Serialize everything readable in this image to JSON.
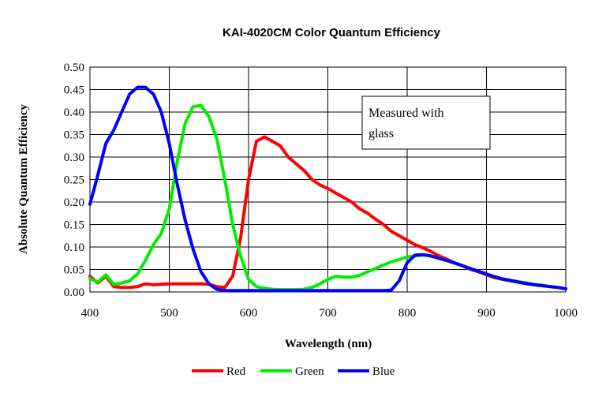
{
  "chart_data": {
    "type": "line",
    "title": "KAI-4020CM   Color Quantum Efficiency",
    "xlabel": "Wavelength (nm)",
    "ylabel": "Absolute Quantum Efficiency",
    "xlim": [
      400,
      1000
    ],
    "ylim": [
      0,
      0.5
    ],
    "xticks": [
      "400",
      "500",
      "600",
      "700",
      "800",
      "900",
      "1000"
    ],
    "yticks": [
      "0.00",
      "0.05",
      "0.10",
      "0.15",
      "0.20",
      "0.25",
      "0.30",
      "0.35",
      "0.40",
      "0.45",
      "0.50"
    ],
    "grid": true,
    "legend_position": "bottom",
    "annotation": {
      "line1": "Measured with",
      "line2": "glass"
    },
    "series": [
      {
        "name": "Red",
        "color": "#ff0000",
        "x": [
          400,
          410,
          420,
          430,
          440,
          450,
          460,
          470,
          480,
          490,
          500,
          510,
          520,
          530,
          540,
          550,
          560,
          570,
          580,
          590,
          600,
          610,
          615,
          620,
          625,
          630,
          640,
          650,
          660,
          670,
          680,
          690,
          700,
          710,
          720,
          730,
          740,
          750,
          760,
          770,
          780,
          790,
          800,
          810,
          820,
          830,
          840,
          850,
          860,
          870,
          880,
          890,
          900,
          910,
          920,
          930,
          940,
          950,
          960,
          970,
          980,
          990,
          1000
        ],
        "y": [
          0.035,
          0.02,
          0.035,
          0.012,
          0.01,
          0.01,
          0.012,
          0.018,
          0.016,
          0.017,
          0.018,
          0.018,
          0.018,
          0.018,
          0.018,
          0.017,
          0.012,
          0.01,
          0.035,
          0.12,
          0.25,
          0.335,
          0.34,
          0.345,
          0.34,
          0.335,
          0.325,
          0.3,
          0.285,
          0.27,
          0.25,
          0.238,
          0.23,
          0.22,
          0.21,
          0.2,
          0.185,
          0.175,
          0.162,
          0.15,
          0.135,
          0.125,
          0.115,
          0.105,
          0.098,
          0.09,
          0.08,
          0.073,
          0.065,
          0.058,
          0.05,
          0.045,
          0.038,
          0.032,
          0.028,
          0.025,
          0.022,
          0.018,
          0.016,
          0.014,
          0.012,
          0.01,
          0.007
        ]
      },
      {
        "name": "Green",
        "color": "#00ee00",
        "x": [
          400,
          410,
          420,
          430,
          440,
          450,
          460,
          470,
          480,
          490,
          500,
          510,
          520,
          530,
          540,
          550,
          560,
          570,
          580,
          590,
          600,
          610,
          620,
          630,
          640,
          650,
          660,
          670,
          680,
          690,
          700,
          710,
          720,
          730,
          740,
          750,
          760,
          770,
          780,
          790,
          800,
          810,
          820,
          830,
          840,
          850,
          860,
          870,
          880,
          890,
          900,
          910,
          920,
          930,
          940,
          950,
          960,
          970,
          980,
          990,
          1000
        ],
        "y": [
          0.03,
          0.022,
          0.038,
          0.017,
          0.02,
          0.025,
          0.04,
          0.07,
          0.105,
          0.13,
          0.185,
          0.29,
          0.375,
          0.412,
          0.415,
          0.39,
          0.34,
          0.25,
          0.15,
          0.08,
          0.028,
          0.012,
          0.008,
          0.006,
          0.005,
          0.005,
          0.005,
          0.006,
          0.01,
          0.018,
          0.028,
          0.035,
          0.033,
          0.033,
          0.037,
          0.045,
          0.052,
          0.06,
          0.067,
          0.072,
          0.078,
          0.08,
          0.082,
          0.08,
          0.075,
          0.07,
          0.065,
          0.058,
          0.052,
          0.046,
          0.04,
          0.034,
          0.029,
          0.026,
          0.023,
          0.02,
          0.017,
          0.015,
          0.012,
          0.01,
          0.007
        ]
      },
      {
        "name": "Blue",
        "color": "#0000ff",
        "x": [
          400,
          410,
          420,
          430,
          440,
          450,
          460,
          470,
          480,
          490,
          500,
          510,
          520,
          530,
          540,
          550,
          560,
          570,
          580,
          590,
          600,
          610,
          620,
          630,
          640,
          650,
          660,
          670,
          680,
          690,
          700,
          710,
          720,
          730,
          740,
          750,
          760,
          770,
          780,
          790,
          800,
          810,
          820,
          830,
          840,
          850,
          860,
          870,
          880,
          890,
          900,
          910,
          920,
          930,
          940,
          950,
          960,
          970,
          980,
          990,
          1000
        ],
        "y": [
          0.195,
          0.26,
          0.33,
          0.36,
          0.4,
          0.44,
          0.455,
          0.455,
          0.44,
          0.4,
          0.33,
          0.24,
          0.16,
          0.095,
          0.045,
          0.018,
          0.006,
          0.003,
          0.003,
          0.003,
          0.003,
          0.003,
          0.003,
          0.003,
          0.003,
          0.003,
          0.003,
          0.003,
          0.003,
          0.003,
          0.003,
          0.003,
          0.003,
          0.003,
          0.003,
          0.003,
          0.003,
          0.003,
          0.004,
          0.025,
          0.065,
          0.082,
          0.083,
          0.08,
          0.075,
          0.07,
          0.064,
          0.058,
          0.052,
          0.046,
          0.04,
          0.034,
          0.029,
          0.026,
          0.022,
          0.019,
          0.016,
          0.014,
          0.012,
          0.01,
          0.007
        ]
      }
    ]
  }
}
